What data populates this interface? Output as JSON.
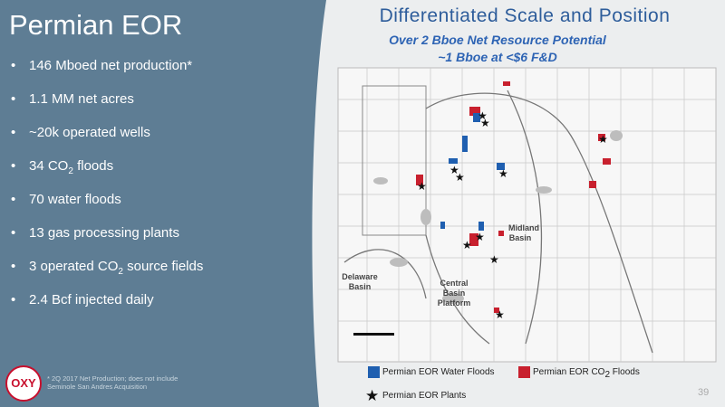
{
  "slide": {
    "title": "Permian EOR",
    "bullets": [
      "146 Mboed net production*",
      "1.1 MM net acres",
      "~20k operated wells",
      {
        "pre": "34 CO",
        "sub": "2",
        "post": " floods"
      },
      "70 water floods",
      "13 gas processing plants",
      {
        "pre": "3 operated CO",
        "sub": "2",
        "post": " source fields"
      },
      "2.4 Bcf injected daily"
    ],
    "heading": "Differentiated Scale and Position",
    "subheading": [
      "Over 2 Bboe Net Resource Potential",
      "~1 Bboe at <$6 F&D"
    ],
    "map_labels": {
      "midland": [
        "Midland",
        "Basin"
      ],
      "delaware": [
        "Delaware",
        "Basin"
      ],
      "central": [
        "Central",
        "Basin",
        "Platform"
      ]
    },
    "legend": {
      "water": "Permian EOR Water Floods",
      "co2": {
        "pre": "Permian EOR CO",
        "sub": "2",
        "post": " Floods"
      },
      "plants": "Permian EOR Plants"
    },
    "footnote": [
      "* 2Q 2017 Net Production; does not include",
      "Seminole San Andres Acquisition"
    ],
    "logo": "OXY",
    "page_number": "39"
  }
}
